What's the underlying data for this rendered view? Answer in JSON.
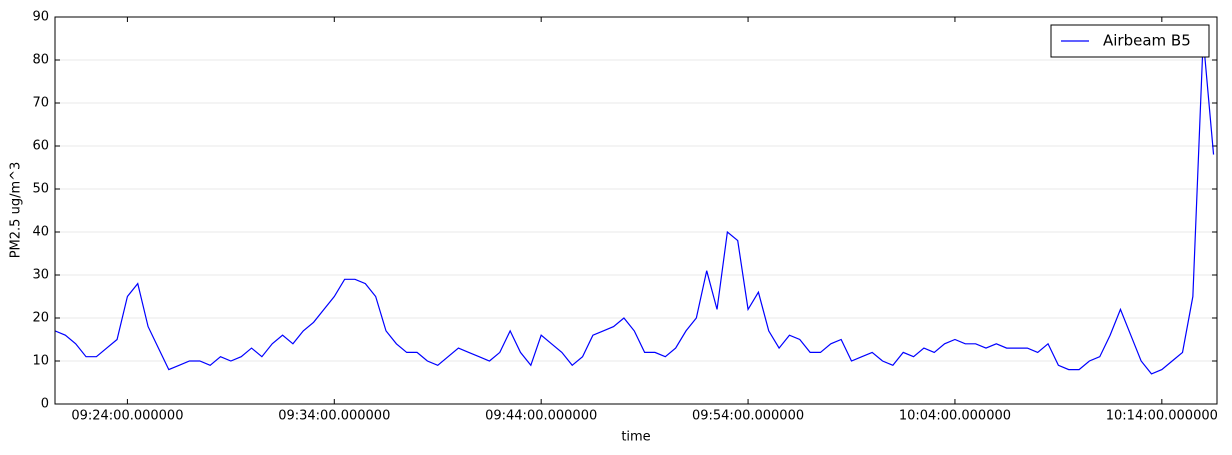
{
  "chart_data": {
    "type": "line",
    "xlabel": "time",
    "ylabel": "PM2.5 ug/m^3",
    "x": [
      "09:20:30",
      "09:21:00",
      "09:21:30",
      "09:22:00",
      "09:22:30",
      "09:23:00",
      "09:23:30",
      "09:24:00",
      "09:24:30",
      "09:25:00",
      "09:25:30",
      "09:26:00",
      "09:26:30",
      "09:27:00",
      "09:27:30",
      "09:28:00",
      "09:28:30",
      "09:29:00",
      "09:29:30",
      "09:30:00",
      "09:30:30",
      "09:31:00",
      "09:31:30",
      "09:32:00",
      "09:32:30",
      "09:33:00",
      "09:33:30",
      "09:34:00",
      "09:34:30",
      "09:35:00",
      "09:35:30",
      "09:36:00",
      "09:36:30",
      "09:37:00",
      "09:37:30",
      "09:38:00",
      "09:38:30",
      "09:39:00",
      "09:39:30",
      "09:40:00",
      "09:40:30",
      "09:41:00",
      "09:41:30",
      "09:42:00",
      "09:42:30",
      "09:43:00",
      "09:43:30",
      "09:44:00",
      "09:44:30",
      "09:45:00",
      "09:45:30",
      "09:46:00",
      "09:46:30",
      "09:47:00",
      "09:47:30",
      "09:48:00",
      "09:48:30",
      "09:49:00",
      "09:49:30",
      "09:50:00",
      "09:50:30",
      "09:51:00",
      "09:51:30",
      "09:52:00",
      "09:52:30",
      "09:53:00",
      "09:53:30",
      "09:54:00",
      "09:54:30",
      "09:55:00",
      "09:55:30",
      "09:56:00",
      "09:56:30",
      "09:57:00",
      "09:57:30",
      "09:58:00",
      "09:58:30",
      "09:59:00",
      "09:59:30",
      "10:00:00",
      "10:00:30",
      "10:01:00",
      "10:01:30",
      "10:02:00",
      "10:02:30",
      "10:03:00",
      "10:03:30",
      "10:04:00",
      "10:04:30",
      "10:05:00",
      "10:05:30",
      "10:06:00",
      "10:06:30",
      "10:07:00",
      "10:07:30",
      "10:08:00",
      "10:08:30",
      "10:09:00",
      "10:09:30",
      "10:10:00",
      "10:10:30",
      "10:11:00",
      "10:11:30",
      "10:12:00",
      "10:12:30",
      "10:13:00",
      "10:13:30",
      "10:14:00",
      "10:14:30",
      "10:15:00",
      "10:15:30",
      "10:16:00",
      "10:16:30"
    ],
    "series": [
      {
        "name": "Airbeam B5",
        "color": "#0000ff",
        "values": [
          17,
          16,
          14,
          11,
          11,
          13,
          15,
          25,
          28,
          18,
          13,
          8,
          9,
          10,
          10,
          9,
          11,
          10,
          11,
          13,
          11,
          14,
          16,
          14,
          17,
          19,
          22,
          25,
          29,
          29,
          28,
          25,
          17,
          14,
          12,
          12,
          10,
          9,
          11,
          13,
          12,
          11,
          10,
          12,
          17,
          12,
          9,
          16,
          14,
          12,
          9,
          11,
          16,
          17,
          18,
          20,
          17,
          12,
          12,
          11,
          13,
          17,
          20,
          31,
          22,
          40,
          38,
          22,
          26,
          17,
          13,
          16,
          15,
          12,
          12,
          14,
          15,
          10,
          11,
          12,
          10,
          9,
          12,
          11,
          13,
          12,
          14,
          15,
          14,
          14,
          13,
          14,
          13,
          13,
          13,
          12,
          14,
          9,
          8,
          8,
          10,
          11,
          16,
          22,
          16,
          10,
          7,
          8,
          10,
          12,
          25,
          85,
          58
        ]
      }
    ],
    "xlim": [
      "09:20:30",
      "10:16:40"
    ],
    "xticks": [
      "09:24:00.000000",
      "09:34:00.000000",
      "09:44:00.000000",
      "09:54:00.000000",
      "10:04:00.000000",
      "10:14:00.000000"
    ],
    "ylim": [
      0,
      90
    ],
    "yticks": [
      0,
      10,
      20,
      30,
      40,
      50,
      60,
      70,
      80,
      90
    ],
    "grid": true,
    "legend": "upper right"
  }
}
